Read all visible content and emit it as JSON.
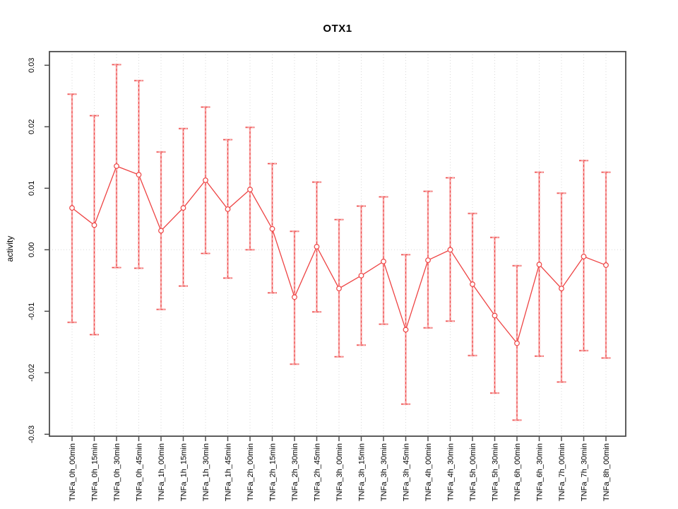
{
  "title": "OTX1",
  "chart_data": {
    "type": "line",
    "subtype": "points-with-error-bars",
    "title": "OTX1",
    "xlabel": "",
    "ylabel": "activity",
    "ylim": [
      -0.03,
      0.03
    ],
    "yticks": [
      0.03,
      0.02,
      0.01,
      0.0,
      -0.01,
      -0.02,
      -0.03
    ],
    "ytick_labels": [
      "0.03",
      "0.02",
      "0.01",
      "0.00",
      "-0.01",
      "-0.02",
      "-0.03"
    ],
    "grid": {
      "vertical": "dotted at every category",
      "horizontal": "dotted line at 0.00 only"
    },
    "legend": "none",
    "marker": "open-circle",
    "categories": [
      "TNFa_0h_00min",
      "TNFa_0h_15min",
      "TNFa_0h_30min",
      "TNFa_0h_45min",
      "TNFa_1h_00min",
      "TNFa_1h_15min",
      "TNFa_1h_30min",
      "TNFa_1h_45min",
      "TNFa_2h_00min",
      "TNFa_2h_15min",
      "TNFa_2h_30min",
      "TNFa_2h_45min",
      "TNFa_3h_00min",
      "TNFa_3h_15min",
      "TNFa_3h_30min",
      "TNFa_3h_45min",
      "TNFa_4h_00min",
      "TNFa_4h_30min",
      "TNFa_5h_00min",
      "TNFa_5h_30min",
      "TNFa_6h_00min",
      "TNFa_6h_30min",
      "TNFa_7h_00min",
      "TNFa_7h_30min",
      "TNFa_8h_00min"
    ],
    "series": [
      {
        "name": "activity",
        "values": [
          0.0068,
          0.004,
          0.0136,
          0.0122,
          0.0031,
          0.0068,
          0.0113,
          0.0066,
          0.0098,
          0.0034,
          -0.0077,
          0.0005,
          -0.0063,
          -0.0042,
          -0.0019,
          -0.013,
          -0.0017,
          0.0,
          -0.0056,
          -0.0107,
          -0.0152,
          -0.0024,
          -0.0063,
          -0.0011,
          -0.0025
        ],
        "upper": [
          0.0253,
          0.0218,
          0.0301,
          0.0275,
          0.0159,
          0.0197,
          0.0232,
          0.0179,
          0.0199,
          0.014,
          0.003,
          0.011,
          0.0049,
          0.0071,
          0.0086,
          -0.0008,
          0.0095,
          0.0117,
          0.0059,
          0.002,
          -0.0026,
          0.0126,
          0.0092,
          0.0145,
          0.0126
        ],
        "lower": [
          -0.0118,
          -0.0138,
          -0.0029,
          -0.003,
          -0.0097,
          -0.0059,
          -0.0006,
          -0.0046,
          0.0,
          -0.007,
          -0.0186,
          -0.0101,
          -0.0174,
          -0.0155,
          -0.0121,
          -0.0251,
          -0.0127,
          -0.0116,
          -0.0172,
          -0.0233,
          -0.0277,
          -0.0173,
          -0.0215,
          -0.0164,
          -0.0176
        ]
      }
    ],
    "colors": {
      "line_red": "#ee4343",
      "bar_pink": "#f7a6a6",
      "marker_fill": "#ffffff",
      "grid_grey": "#d8d8d8",
      "frame_grey": "#4d4d4d",
      "text": "#000000"
    }
  }
}
